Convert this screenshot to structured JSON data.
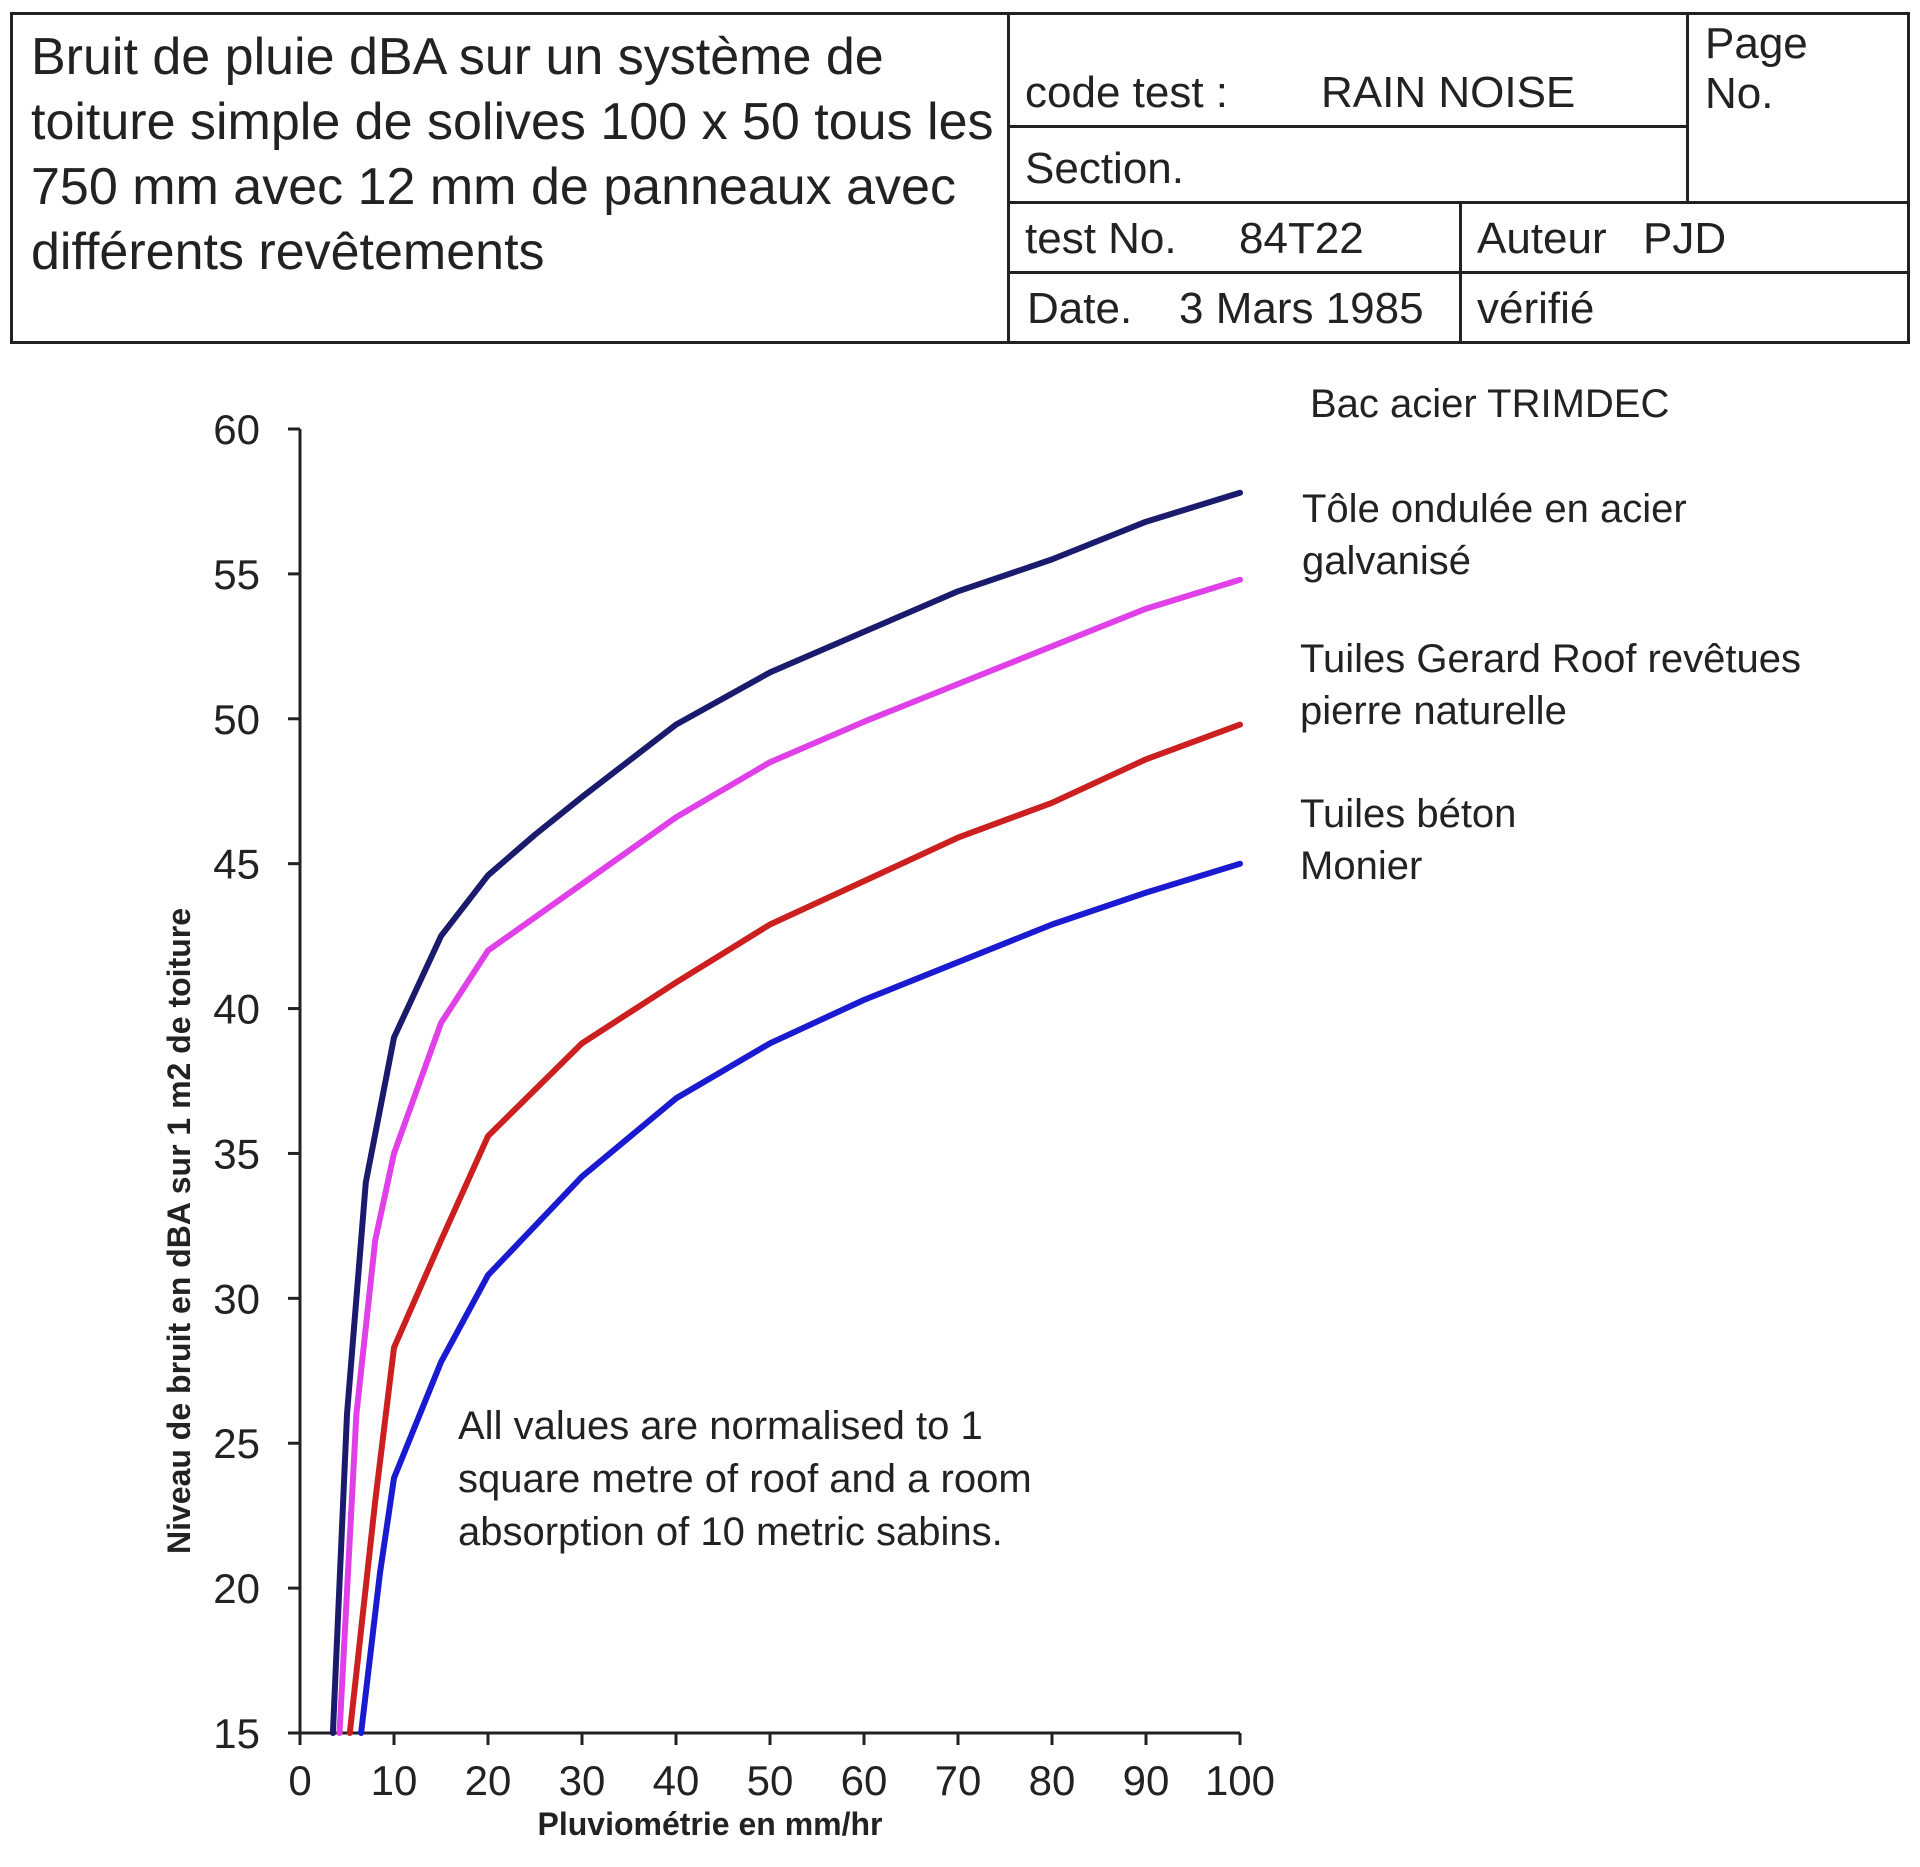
{
  "header": {
    "title": "Bruit de pluie dBA sur un système de toiture simple de solives 100 x 50 tous les 750 mm avec 12 mm de panneaux avec différents revêtements",
    "code_label": "code test :",
    "code_value": "RAIN NOISE",
    "page_label": "Page No.",
    "section_label": "Section.",
    "test_label": "test No.",
    "test_value": "84T22",
    "author_label": "Auteur",
    "author_value": "PJD",
    "date_label": "Date.",
    "date_value": "3 Mars 1985",
    "verified_label": "vérifié"
  },
  "chart_data": {
    "type": "line",
    "xlabel": "Pluviométrie en mm/hr",
    "ylabel": "Niveau de bruit en dBA sur 1 m2 de toiture",
    "xlim": [
      0,
      100
    ],
    "ylim": [
      15,
      60
    ],
    "xticks": [
      0,
      10,
      20,
      30,
      40,
      50,
      60,
      70,
      80,
      90,
      100
    ],
    "yticks": [
      15,
      20,
      25,
      30,
      35,
      40,
      45,
      50,
      55,
      60
    ],
    "grid": false,
    "legend": "right",
    "annotation": "All values are normalised to 1 square metre of roof and a room absorption of 10 metric sabins.",
    "series": [
      {
        "name": "Bac acier TRIMDEC",
        "color": "#1b1b6e",
        "points": [
          [
            3.5,
            15
          ],
          [
            5,
            26
          ],
          [
            7,
            34
          ],
          [
            10,
            39
          ],
          [
            15,
            42.5
          ],
          [
            20,
            44.6
          ],
          [
            25,
            46
          ],
          [
            30,
            47.3
          ],
          [
            40,
            49.8
          ],
          [
            50,
            51.6
          ],
          [
            60,
            53
          ],
          [
            70,
            54.4
          ],
          [
            80,
            55.5
          ],
          [
            90,
            56.8
          ],
          [
            100,
            57.8
          ]
        ]
      },
      {
        "name": "Tôle ondulée en acier galvanisé",
        "color": "#e040e8",
        "points": [
          [
            4.2,
            15
          ],
          [
            6,
            26
          ],
          [
            8,
            32
          ],
          [
            10,
            35
          ],
          [
            15,
            39.5
          ],
          [
            20,
            42
          ],
          [
            30,
            44.3
          ],
          [
            40,
            46.6
          ],
          [
            50,
            48.5
          ],
          [
            60,
            49.9
          ],
          [
            70,
            51.2
          ],
          [
            80,
            52.5
          ],
          [
            90,
            53.8
          ],
          [
            100,
            54.8
          ]
        ]
      },
      {
        "name": "Tuiles Gerard Roof revêtues pierre naturelle",
        "color": "#cc2020",
        "points": [
          [
            5.3,
            15
          ],
          [
            8,
            23
          ],
          [
            10,
            28.3
          ],
          [
            15,
            32
          ],
          [
            20,
            35.6
          ],
          [
            30,
            38.8
          ],
          [
            40,
            40.9
          ],
          [
            50,
            42.9
          ],
          [
            60,
            44.4
          ],
          [
            70,
            45.9
          ],
          [
            80,
            47.1
          ],
          [
            90,
            48.6
          ],
          [
            100,
            49.8
          ]
        ]
      },
      {
        "name": "Tuiles béton Monier",
        "color": "#1a1ad0",
        "points": [
          [
            6.5,
            15
          ],
          [
            8.5,
            20.5
          ],
          [
            10,
            23.8
          ],
          [
            15,
            27.8
          ],
          [
            20,
            30.8
          ],
          [
            30,
            34.2
          ],
          [
            40,
            36.9
          ],
          [
            50,
            38.8
          ],
          [
            60,
            40.3
          ],
          [
            70,
            41.6
          ],
          [
            80,
            42.9
          ],
          [
            90,
            44
          ],
          [
            100,
            45
          ]
        ]
      }
    ]
  }
}
